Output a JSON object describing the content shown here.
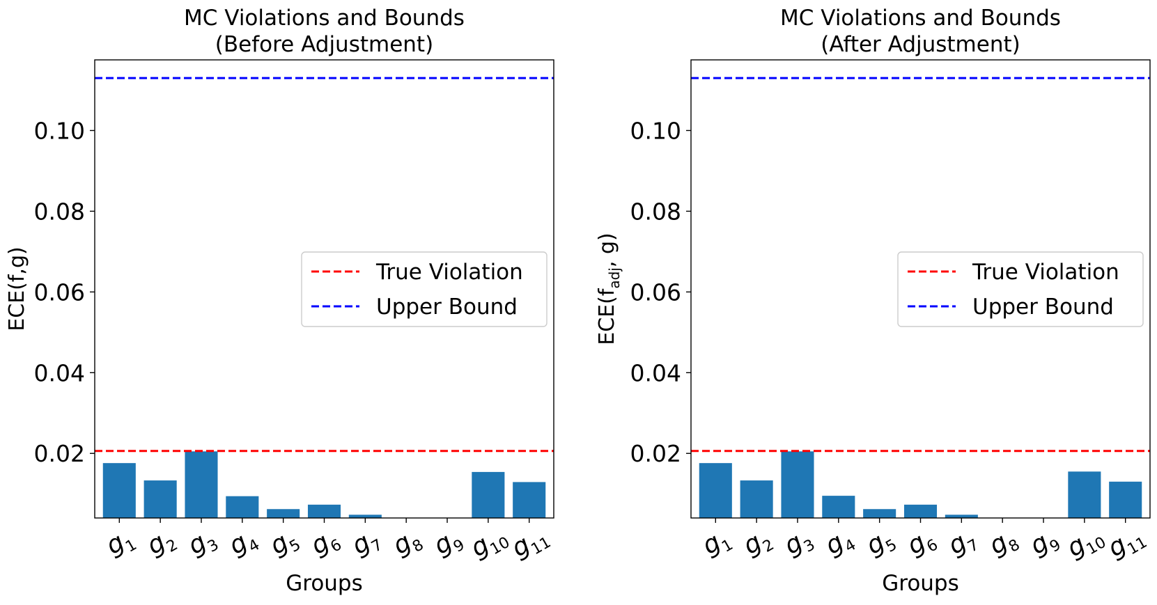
{
  "chart_data": [
    {
      "type": "bar",
      "title_line1": "MC Violations and Bounds",
      "title_line2": "(Before Adjustment)",
      "xlabel": "Groups",
      "ylabel": "ECE(f,g)",
      "ylabel_main": "ECE(f,g)",
      "ylabel_sub": "",
      "ylabel_tail": "",
      "categories": [
        "g1",
        "g2",
        "g3",
        "g4",
        "g5",
        "g6",
        "g7",
        "g8",
        "g9",
        "g10",
        "g11"
      ],
      "category_base": "g",
      "category_subs": [
        "1",
        "2",
        "3",
        "4",
        "5",
        "6",
        "7",
        "8",
        "9",
        "10",
        "11"
      ],
      "values": [
        0.0176,
        0.0133,
        0.0205,
        0.0094,
        0.0062,
        0.0073,
        0.0048,
        0.004,
        0.004,
        0.0154,
        0.0129
      ],
      "ylim": [
        0.004,
        0.1175
      ],
      "yticks": [
        0.02,
        0.04,
        0.06,
        0.08,
        0.1
      ],
      "ytick_labels": [
        "0.02",
        "0.04",
        "0.06",
        "0.08",
        "0.10"
      ],
      "hlines": [
        {
          "label": "True Violation",
          "value": 0.0206,
          "color": "#ff0000"
        },
        {
          "label": "Upper Bound",
          "value": 0.113,
          "color": "#0000ff"
        }
      ],
      "legend": "center-right",
      "bar_color": "#1f77b4",
      "grid": false
    },
    {
      "type": "bar",
      "title_line1": "MC Violations and Bounds",
      "title_line2": "(After Adjustment)",
      "xlabel": "Groups",
      "ylabel": "ECE(f_adj, g)",
      "ylabel_main": "ECE(f",
      "ylabel_sub": "adj",
      "ylabel_tail": ", g)",
      "categories": [
        "g1",
        "g2",
        "g3",
        "g4",
        "g5",
        "g6",
        "g7",
        "g8",
        "g9",
        "g10",
        "g11"
      ],
      "category_base": "g",
      "category_subs": [
        "1",
        "2",
        "3",
        "4",
        "5",
        "6",
        "7",
        "8",
        "9",
        "10",
        "11"
      ],
      "values": [
        0.0176,
        0.0133,
        0.0205,
        0.0095,
        0.0062,
        0.0073,
        0.0048,
        0.004,
        0.004,
        0.0155,
        0.013
      ],
      "ylim": [
        0.004,
        0.1175
      ],
      "yticks": [
        0.02,
        0.04,
        0.06,
        0.08,
        0.1
      ],
      "ytick_labels": [
        "0.02",
        "0.04",
        "0.06",
        "0.08",
        "0.10"
      ],
      "hlines": [
        {
          "label": "True Violation",
          "value": 0.0206,
          "color": "#ff0000"
        },
        {
          "label": "Upper Bound",
          "value": 0.113,
          "color": "#0000ff"
        }
      ],
      "legend": "center-right",
      "bar_color": "#1f77b4",
      "grid": false
    }
  ]
}
